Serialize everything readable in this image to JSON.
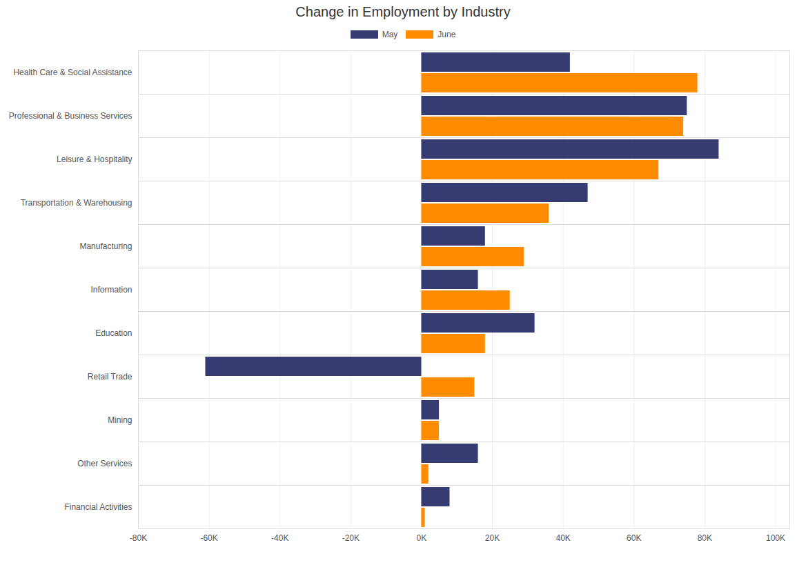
{
  "chart_data": {
    "type": "bar",
    "orientation": "horizontal",
    "title": "Change in Employment by Industry",
    "categories": [
      "Health Care & Social Assistance",
      "Professional & Business Services",
      "Leisure & Hospitality",
      "Transportation & Warehousing",
      "Manufacturing",
      "Information",
      "Education",
      "Retail Trade",
      "Mining",
      "Other Services",
      "Financial Activities"
    ],
    "series": [
      {
        "name": "May",
        "color": "#363b72",
        "values": [
          42000,
          75000,
          84000,
          47000,
          18000,
          16000,
          32000,
          -61000,
          5000,
          16000,
          8000
        ]
      },
      {
        "name": "June",
        "color": "#ff8c00",
        "values": [
          78000,
          74000,
          67000,
          36000,
          29000,
          25000,
          18000,
          15000,
          5000,
          2000,
          1000
        ]
      }
    ],
    "xlim": [
      -80000,
      104000
    ],
    "xticks": [
      {
        "value": -80000,
        "label": "-80K"
      },
      {
        "value": -60000,
        "label": "-60K"
      },
      {
        "value": -40000,
        "label": "-40K"
      },
      {
        "value": -20000,
        "label": "-20K"
      },
      {
        "value": 0,
        "label": "0K"
      },
      {
        "value": 20000,
        "label": "20K"
      },
      {
        "value": 40000,
        "label": "40K"
      },
      {
        "value": 60000,
        "label": "60K"
      },
      {
        "value": 80000,
        "label": "80K"
      },
      {
        "value": 100000,
        "label": "100K"
      }
    ],
    "grid": true,
    "legend": "top"
  }
}
